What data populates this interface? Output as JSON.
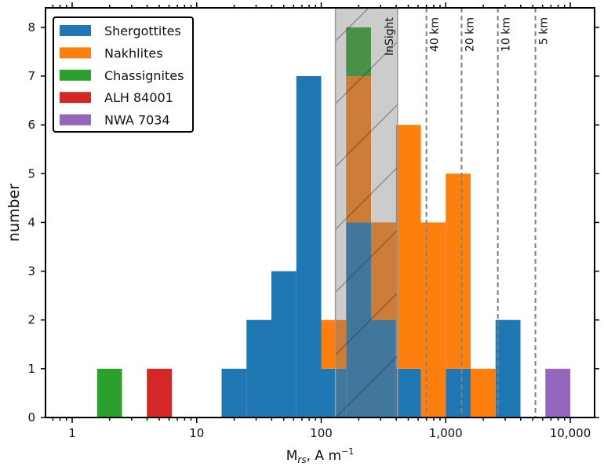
{
  "chart_data": {
    "type": "bar",
    "stacked": true,
    "xscale": "log",
    "xlim": [
      0.61,
      16400
    ],
    "ylim": [
      0,
      8.4
    ],
    "xlabel": {
      "main": "M",
      "sub": "rs",
      "unit": ", A m",
      "sup": "−1"
    },
    "ylabel": "number",
    "xticks": [
      {
        "value": 1,
        "label": "1"
      },
      {
        "value": 10,
        "label": "10"
      },
      {
        "value": 100,
        "label": "100"
      },
      {
        "value": 1000,
        "label": "1,000"
      },
      {
        "value": 10000,
        "label": "10,000"
      }
    ],
    "yticks": [
      0,
      1,
      2,
      3,
      4,
      5,
      6,
      7,
      8
    ],
    "bin_log_width": 0.2,
    "series": [
      {
        "name": "Shergottites",
        "color": "#1f77b4",
        "bars": [
          {
            "x0": 15.85,
            "x1": 25.12,
            "count": 1
          },
          {
            "x0": 25.12,
            "x1": 39.81,
            "count": 2
          },
          {
            "x0": 39.81,
            "x1": 63.1,
            "count": 3
          },
          {
            "x0": 63.1,
            "x1": 100,
            "count": 7
          },
          {
            "x0": 100,
            "x1": 158.5,
            "count": 1
          },
          {
            "x0": 158.5,
            "x1": 251.2,
            "count": 4
          },
          {
            "x0": 251.2,
            "x1": 398.1,
            "count": 2
          },
          {
            "x0": 398.1,
            "x1": 631,
            "count": 1
          },
          {
            "x0": 1000,
            "x1": 1585,
            "count": 1
          },
          {
            "x0": 2512,
            "x1": 3981,
            "count": 2
          }
        ]
      },
      {
        "name": "Nakhlites",
        "color": "#ff7f0e",
        "bars": [
          {
            "x0": 100,
            "x1": 158.5,
            "count": 1
          },
          {
            "x0": 158.5,
            "x1": 251.2,
            "count": 3
          },
          {
            "x0": 251.2,
            "x1": 398.1,
            "count": 2
          },
          {
            "x0": 398.1,
            "x1": 631,
            "count": 5
          },
          {
            "x0": 631,
            "x1": 1000,
            "count": 4
          },
          {
            "x0": 1000,
            "x1": 1585,
            "count": 4
          },
          {
            "x0": 1585,
            "x1": 2512,
            "count": 1
          }
        ]
      },
      {
        "name": "Chassignites",
        "color": "#2ca02c",
        "bars": [
          {
            "x0": 1.585,
            "x1": 2.512,
            "count": 1
          },
          {
            "x0": 158.5,
            "x1": 251.2,
            "count": 1
          }
        ]
      },
      {
        "name": "ALH 84001",
        "color": "#d62728",
        "bars": [
          {
            "x0": 3.981,
            "x1": 6.31,
            "count": 1
          }
        ]
      },
      {
        "name": "NWA 7034",
        "color": "#9467bd",
        "bars": [
          {
            "x0": 6310,
            "x1": 10000,
            "count": 1
          }
        ]
      }
    ],
    "legend_position": "top-left",
    "shaded_band": {
      "label": "InSight",
      "x0": 130,
      "x1": 410
    },
    "vlines": [
      {
        "value": 700,
        "label": "40 km"
      },
      {
        "value": 1340,
        "label": "20 km"
      },
      {
        "value": 2620,
        "label": "10 km"
      },
      {
        "value": 5250,
        "label": "5 km"
      }
    ]
  }
}
